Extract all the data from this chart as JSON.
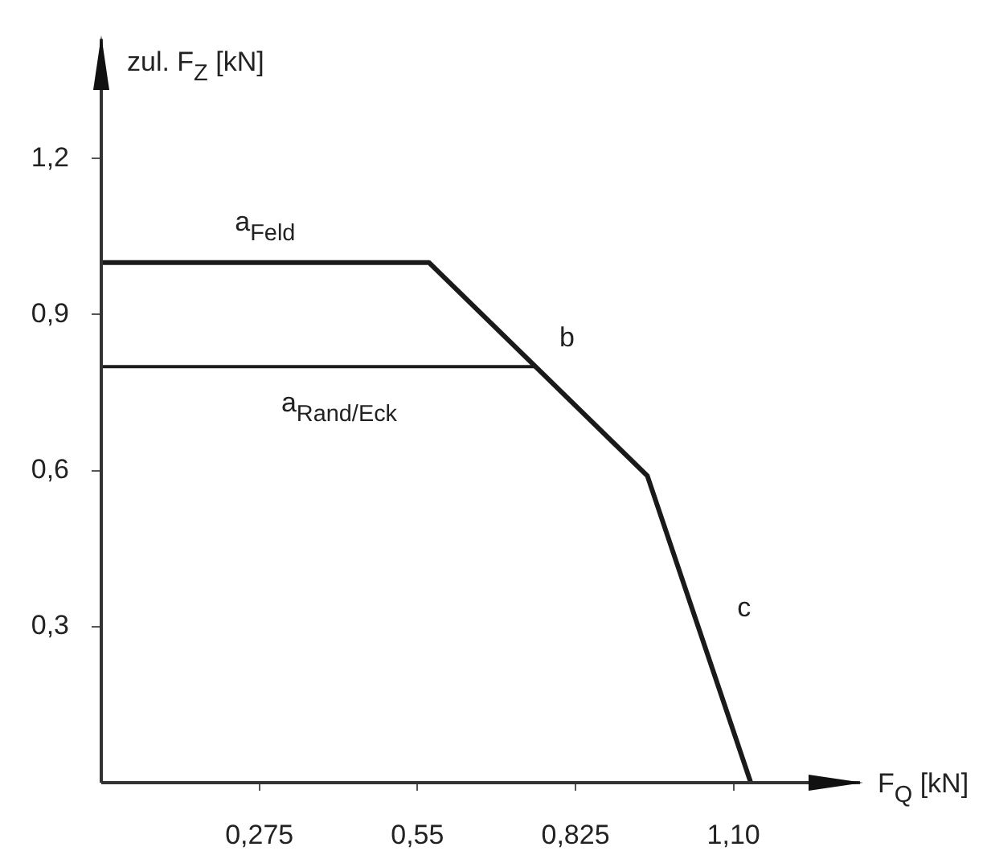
{
  "chart_data": {
    "type": "line",
    "xlabel": "F$_{Q}$ [kN]",
    "ylabel": "zul. F$_{Z}$ [kN]",
    "xlim": [
      0,
      1.32
    ],
    "ylim": [
      0,
      1.43
    ],
    "xticks": [
      {
        "value": 0.275,
        "label": "0,275"
      },
      {
        "value": 0.55,
        "label": "0,55"
      },
      {
        "value": 0.825,
        "label": "0,825"
      },
      {
        "value": 1.1,
        "label": "1,10"
      }
    ],
    "yticks": [
      {
        "value": 0.3,
        "label": "0,3"
      },
      {
        "value": 0.6,
        "label": "0,6"
      },
      {
        "value": 0.9,
        "label": "0,9"
      },
      {
        "value": 1.2,
        "label": "1,2"
      }
    ],
    "series": [
      {
        "name": "a$_{Feld}$",
        "color": "#1a1a1a",
        "x": [
          0,
          0.57,
          0.95,
          1.13
        ],
        "values": [
          1.0,
          1.0,
          0.59,
          0
        ]
      },
      {
        "name": "a$_{Rand/Eck}$",
        "color": "#1a1a1a",
        "x": [
          0,
          0.755
        ],
        "values": [
          0.8,
          0.8
        ]
      }
    ],
    "annotations": [
      "b",
      "c"
    ],
    "grid": false,
    "legend": false,
    "marker": "none",
    "line_style": "solid"
  }
}
